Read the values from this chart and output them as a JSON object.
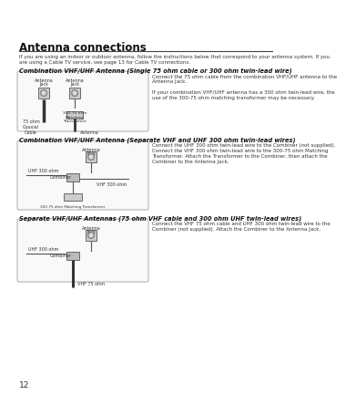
{
  "page_num": "12",
  "title": "Antenna connections",
  "intro_text": "If you are using an indoor or outdoor antenna, follow the instructions below that correspond to your antenna system. If you\nare using a Cable TV service, see page 13 for Cable TV connections.",
  "section1_heading": "Combination VHF/UHF Antenna (Single 75 ohm cable or 300 ohm twin-lead wire)",
  "section1_desc": "Connect the 75 ohm cable from the combination VHF/UHF antenna to the\nAntenna Jack.\n\nIf your combination VHF/UHF antenna has a 300 ohm twin-lead wire, the\nuse of the 300-75 ohm matching transformer may be necessary.",
  "section2_heading": "Combination VHF/UHF Antenna (Separate VHF and UHF 300 ohm twin-lead wires)",
  "section2_desc": "Connect the UHF 300 ohm twin-lead wire to the Combiner (not supplied).\nConnect the VHF 300 ohm twin-lead wire to the 300-75 ohm Matching\nTransformer. Attach the Transformer to the Combiner, then attach the\nCombiner to the Antenna Jack.",
  "section3_heading": "Separate VHF/UHF Antennas (75 ohm VHF cable and 300 ohm UHF twin-lead wires)",
  "section3_desc": "Connect the VHF 75 ohm cable and UHF 300 ohm twin-lead wire to the\nCombiner (not supplied). Attach the Combiner to the Antenna Jack.",
  "bg_color": "#ffffff",
  "text_color": "#333333",
  "line_color": "#666666",
  "box_edge_color": "#999999",
  "box_face_color": "#f5f5f5",
  "diagram_box_edge": "#aaaaaa",
  "title_fontsize": 8.5,
  "heading_fontsize": 4.8,
  "intro_fontsize": 4.0,
  "desc_fontsize": 4.0,
  "label_fontsize": 3.5
}
